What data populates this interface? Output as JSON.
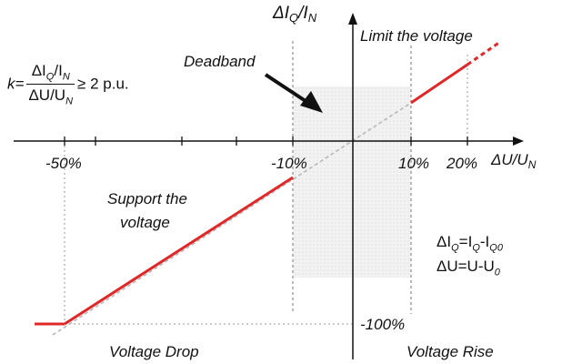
{
  "axes": {
    "y_label": "ΔI_Q/I_N",
    "x_label": "ΔU/U_N",
    "x_ticks": [
      "-50%",
      "-10%",
      "10%",
      "20%"
    ],
    "y_tick_bottom": "-100%"
  },
  "annotations": {
    "limit_voltage": "Limit the voltage",
    "deadband": "Deadband",
    "support_voltage_line1": "Support the",
    "support_voltage_line2": "voltage",
    "voltage_drop": "Voltage Drop",
    "voltage_rise": "Voltage Rise"
  },
  "formula_k": {
    "lhs": "k=",
    "num_a": "ΔI",
    "num_sub1": "Q",
    "num_b": "/I",
    "num_sub2": "N",
    "den_a": "ΔU/U",
    "den_sub": "N",
    "rhs": "≥ 2 p.u."
  },
  "definitions": {
    "dIq_a": "ΔI",
    "dIq_sub1": "Q",
    "dIq_b": "=I",
    "dIq_sub2": "Q",
    "dIq_c": "-I",
    "dIq_sub3": "Q0",
    "dU_a": "ΔU=U-U",
    "dU_sub": "0"
  },
  "colors": {
    "characteristic": "#e02828",
    "extension": "#b8b8b8",
    "axis": "#111111",
    "deadband_fill": "#ededed"
  },
  "characteristic": {
    "deadband_percent": 10,
    "gain_k_pu": 2,
    "min_reactive_current_percent": -100,
    "segments": [
      {
        "x": [
          -60,
          -50
        ],
        "y": [
          -100,
          -100
        ]
      },
      {
        "x": [
          -50,
          -10
        ],
        "y": [
          -100,
          -20
        ]
      },
      {
        "x": [
          10,
          20
        ],
        "y": [
          20,
          40
        ]
      }
    ]
  }
}
